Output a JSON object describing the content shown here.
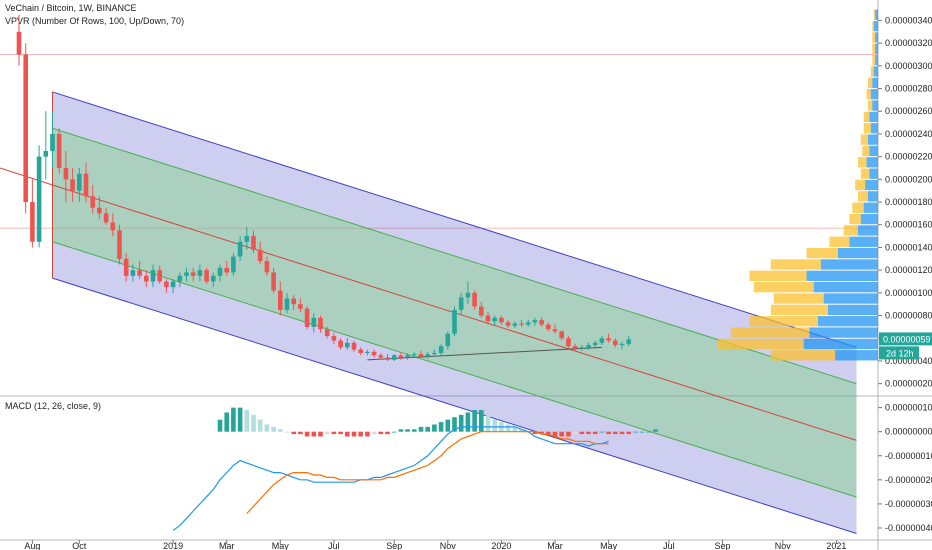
{
  "header": {
    "title": "VeChain / Bitcoin, 1W, BINANCE",
    "indicator": "VPVR (Number Of Rows, 100, Up/Down, 70)"
  },
  "macd_label": "MACD (12, 26, close, 9)",
  "last_price_label": "0.00000059",
  "countdown_label": "2d 12h",
  "colors": {
    "up": "#26a69a",
    "down": "#ef5350",
    "channel_outer": "#3f3fbf",
    "channel_inner": "#4caf50",
    "macd_line": "#2196f3",
    "signal_line": "#ff6d00",
    "vp_up": "#2196f3",
    "vp_down": "#fbc02d"
  },
  "chart_data": [
    {
      "type": "candlestick",
      "title": "VeChain / Bitcoin, 1W, BINANCE",
      "x_ticks": [
        "Aug",
        "Oct",
        "2019",
        "Mar",
        "May",
        "Jul",
        "Sep",
        "Nov",
        "2020",
        "Mar",
        "May",
        "Jul",
        "Sep",
        "Nov",
        "2021"
      ],
      "y_ticks": [
        "0.00000340",
        "0.00000320",
        "0.00000300",
        "0.00000280",
        "0.00000260",
        "0.00000240",
        "0.00000220",
        "0.00000200",
        "0.00000180",
        "0.00000160",
        "0.00000140",
        "0.00000120",
        "0.00000100",
        "0.00000080",
        "0.00000060",
        "0.00000040",
        "0.00000020"
      ],
      "y_range": [
        1e-07,
        3.58e-06
      ],
      "last_close": 5.9e-07,
      "candles": [
        [
          3.3e-06,
          3.45e-06,
          3e-06,
          3.1e-06
        ],
        [
          3.1e-06,
          3.2e-06,
          1.7e-06,
          1.8e-06
        ],
        [
          1.8e-06,
          2e-06,
          1.4e-06,
          1.45e-06
        ],
        [
          1.45e-06,
          2.3e-06,
          1.4e-06,
          2.2e-06
        ],
        [
          2.2e-06,
          2.6e-06,
          2e-06,
          2.25e-06
        ],
        [
          2.25e-06,
          2.6e-06,
          2.1e-06,
          2.4e-06
        ],
        [
          2.4e-06,
          2.45e-06,
          2.05e-06,
          2.1e-06
        ],
        [
          2.1e-06,
          2.25e-06,
          1.8e-06,
          2e-06
        ],
        [
          2e-06,
          2.1e-06,
          1.8e-06,
          1.9e-06
        ],
        [
          1.9e-06,
          2.1e-06,
          1.8e-06,
          2.05e-06
        ],
        [
          2.05e-06,
          2.15e-06,
          1.8e-06,
          1.85e-06
        ],
        [
          1.85e-06,
          1.95e-06,
          1.7e-06,
          1.75e-06
        ],
        [
          1.75e-06,
          1.85e-06,
          1.65e-06,
          1.7e-06
        ],
        [
          1.7e-06,
          1.75e-06,
          1.6e-06,
          1.62e-06
        ],
        [
          1.62e-06,
          1.7e-06,
          1.5e-06,
          1.55e-06
        ],
        [
          1.55e-06,
          1.6e-06,
          1.25e-06,
          1.3e-06
        ],
        [
          1.3e-06,
          1.35e-06,
          1.1e-06,
          1.15e-06
        ],
        [
          1.15e-06,
          1.25e-06,
          1.1e-06,
          1.2e-06
        ],
        [
          1.2e-06,
          1.28e-06,
          1.12e-06,
          1.15e-06
        ],
        [
          1.15e-06,
          1.2e-06,
          1.05e-06,
          1.1e-06
        ],
        [
          1.1e-06,
          1.25e-06,
          1.05e-06,
          1.2e-06
        ],
        [
          1.2e-06,
          1.24e-06,
          1.08e-06,
          1.1e-06
        ],
        [
          1.1e-06,
          1.12e-06,
          1e-06,
          1.05e-06
        ],
        [
          1.05e-06,
          1.12e-06,
          1e-06,
          1.1e-06
        ],
        [
          1.1e-06,
          1.18e-06,
          1.05e-06,
          1.15e-06
        ],
        [
          1.15e-06,
          1.22e-06,
          1.1e-06,
          1.18e-06
        ],
        [
          1.18e-06,
          1.22e-06,
          1.1e-06,
          1.15e-06
        ],
        [
          1.15e-06,
          1.25e-06,
          1.1e-06,
          1.2e-06
        ],
        [
          1.2e-06,
          1.22e-06,
          1.08e-06,
          1.1e-06
        ],
        [
          1.1e-06,
          1.18e-06,
          1.05e-06,
          1.15e-06
        ],
        [
          1.15e-06,
          1.25e-06,
          1.1e-06,
          1.22e-06
        ],
        [
          1.22e-06,
          1.28e-06,
          1.15e-06,
          1.18e-06
        ],
        [
          1.18e-06,
          1.35e-06,
          1.15e-06,
          1.32e-06
        ],
        [
          1.32e-06,
          1.5e-06,
          1.28e-06,
          1.45e-06
        ],
        [
          1.45e-06,
          1.58e-06,
          1.38e-06,
          1.5e-06
        ],
        [
          1.5e-06,
          1.55e-06,
          1.35e-06,
          1.38e-06
        ],
        [
          1.38e-06,
          1.45e-06,
          1.25e-06,
          1.28e-06
        ],
        [
          1.28e-06,
          1.32e-06,
          1.15e-06,
          1.18e-06
        ],
        [
          1.18e-06,
          1.22e-06,
          1e-06,
          1.02e-06
        ],
        [
          1.02e-06,
          1.1e-06,
          8e-07,
          8.5e-07
        ],
        [
          8.5e-07,
          1e-06,
          8.2e-07,
          9.5e-07
        ],
        [
          9.5e-07,
          9.8e-07,
          8.5e-07,
          9e-07
        ],
        [
          9e-07,
          9.5e-07,
          8.3e-07,
          8.6e-07
        ],
        [
          8.6e-07,
          8.8e-07,
          6.8e-07,
          7e-07
        ],
        [
          7e-07,
          8.2e-07,
          6.5e-07,
          7.8e-07
        ],
        [
          7.8e-07,
          8e-07,
          6.5e-07,
          6.8e-07
        ],
        [
          6.8e-07,
          7e-07,
          6e-07,
          6.2e-07
        ],
        [
          6.2e-07,
          6.5e-07,
          5.5e-07,
          5.8e-07
        ],
        [
          5.8e-07,
          6e-07,
          5e-07,
          5.2e-07
        ],
        [
          5.2e-07,
          6e-07,
          5e-07,
          5.6e-07
        ],
        [
          5.6e-07,
          5.8e-07,
          4.8e-07,
          5e-07
        ],
        [
          5e-07,
          5.2e-07,
          4.5e-07,
          4.7e-07
        ],
        [
          4.7e-07,
          5e-07,
          4.5e-07,
          4.8e-07
        ],
        [
          4.8e-07,
          5e-07,
          4.3e-07,
          4.5e-07
        ],
        [
          4.5e-07,
          4.7e-07,
          4.1e-07,
          4.3e-07
        ],
        [
          4.3e-07,
          4.6e-07,
          4e-07,
          4.1e-07
        ],
        [
          4.1e-07,
          4.6e-07,
          4e-07,
          4.5e-07
        ],
        [
          4.5e-07,
          4.8e-07,
          4.1e-07,
          4.3e-07
        ],
        [
          4.3e-07,
          4.7e-07,
          4.1e-07,
          4.5e-07
        ],
        [
          4.5e-07,
          4.8e-07,
          4.3e-07,
          4.6e-07
        ],
        [
          4.6e-07,
          4.9e-07,
          4.3e-07,
          4.4e-07
        ],
        [
          4.4e-07,
          4.8e-07,
          4.2e-07,
          4.6e-07
        ],
        [
          4.6e-07,
          5e-07,
          4.4e-07,
          4.7e-07
        ],
        [
          4.7e-07,
          5.5e-07,
          4.5e-07,
          5.3e-07
        ],
        [
          5.3e-07,
          6.6e-07,
          5e-07,
          6.4e-07
        ],
        [
          6.4e-07,
          8.8e-07,
          6.2e-07,
          8.5e-07
        ],
        [
          8.5e-07,
          1e-06,
          8e-07,
          9.6e-07
        ],
        [
          9.6e-07,
          1.1e-06,
          9e-07,
          1e-06
        ],
        [
          1e-06,
          1.02e-06,
          8.5e-07,
          8.8e-07
        ],
        [
          8.8e-07,
          9.2e-07,
          7.8e-07,
          8e-07
        ],
        [
          8e-07,
          8.3e-07,
          7.2e-07,
          7.5e-07
        ],
        [
          7.5e-07,
          8e-07,
          7.1e-07,
          7.8e-07
        ],
        [
          7.8e-07,
          8e-07,
          7.2e-07,
          7.4e-07
        ],
        [
          7.4e-07,
          7.6e-07,
          6.9e-07,
          7.1e-07
        ],
        [
          7.1e-07,
          7.5e-07,
          6.9e-07,
          7.3e-07
        ],
        [
          7.3e-07,
          7.6e-07,
          7e-07,
          7.2e-07
        ],
        [
          7.2e-07,
          7.6e-07,
          7e-07,
          7.4e-07
        ],
        [
          7.4e-07,
          7.8e-07,
          7.1e-07,
          7.6e-07
        ],
        [
          7.6e-07,
          7.8e-07,
          7e-07,
          7.2e-07
        ],
        [
          7.2e-07,
          7.4e-07,
          6.6e-07,
          6.8e-07
        ],
        [
          6.8e-07,
          7.2e-07,
          6.4e-07,
          6.6e-07
        ],
        [
          6.6e-07,
          6.7e-07,
          5.8e-07,
          6e-07
        ],
        [
          6e-07,
          6.2e-07,
          5.1e-07,
          5.3e-07
        ],
        [
          5.3e-07,
          5.5e-07,
          4.9e-07,
          5.1e-07
        ],
        [
          5.1e-07,
          5.4e-07,
          4.9e-07,
          5.2e-07
        ],
        [
          5.2e-07,
          5.6e-07,
          5e-07,
          5.4e-07
        ],
        [
          5.4e-07,
          5.8e-07,
          5.2e-07,
          5.6e-07
        ],
        [
          5.6e-07,
          6.2e-07,
          5.4e-07,
          6e-07
        ],
        [
          6e-07,
          6.4e-07,
          5.6e-07,
          5.8e-07
        ],
        [
          5.8e-07,
          6e-07,
          5.2e-07,
          5.4e-07
        ],
        [
          5.4e-07,
          5.7e-07,
          5e-07,
          5.5e-07
        ],
        [
          5.5e-07,
          6.2e-07,
          5.3e-07,
          5.9e-07
        ]
      ],
      "channel_outer_upper": [
        [
          2.72e-06,
          0
        ],
        [
          0.0,
          0
        ]
      ],
      "trendlines": {
        "channel": {
          "start_index": 5,
          "start_mid": 1.95e-06,
          "end_index": 125,
          "end_mid": -3e-07,
          "half_outer": 8.2e-07,
          "half_inner": 5e-07
        },
        "support": {
          "start_index": 52,
          "start_value": 4.1e-07,
          "end_index": 87,
          "end_value": 5.2e-07
        }
      },
      "horizontal_levels": [
        3.1e-06,
        1.57e-06
      ]
    },
    {
      "type": "macd",
      "title": "MACD (12, 26, close, 9)",
      "y_ticks": [
        "0.00000010",
        "0.00000000",
        "-0.00000010",
        "-0.00000020",
        "-0.00000030",
        "-0.00000040"
      ],
      "y_range": [
        -4.5e-07,
        1.4e-07
      ],
      "start_index": 23,
      "macd": [
        -4.1e-07,
        -3.9e-07,
        -3.6e-07,
        -3.3e-07,
        -3e-07,
        -2.7e-07,
        -2.4e-07,
        -2e-07,
        -1.7e-07,
        -1.4e-07,
        -1.2e-07,
        -1.3e-07,
        -1.4e-07,
        -1.5e-07,
        -1.6e-07,
        -1.7e-07,
        -1.7e-07,
        -1.8e-07,
        -1.9e-07,
        -2e-07,
        -2e-07,
        -2.1e-07,
        -2.1e-07,
        -2.1e-07,
        -2.1e-07,
        -2.1e-07,
        -2.1e-07,
        -2.1e-07,
        -2e-07,
        -2e-07,
        -1.9e-07,
        -1.9e-07,
        -1.8e-07,
        -1.7e-07,
        -1.6e-07,
        -1.5e-07,
        -1.4e-07,
        -1.2e-07,
        -1e-07,
        -7e-08,
        -4e-08,
        -1e-08,
        1e-08,
        2e-08,
        2e-08,
        2e-08,
        2e-08,
        2e-08,
        2e-08,
        2e-08,
        2e-08,
        2e-08,
        1e-08,
        0.0,
        -2e-08,
        -3e-08,
        -4e-08,
        -5e-08,
        -5e-08,
        -5e-08,
        -5e-08,
        -5e-08,
        -6e-08,
        -5e-08,
        -5e-08,
        -4e-08
      ],
      "signal": [
        null,
        null,
        null,
        null,
        null,
        null,
        null,
        null,
        null,
        null,
        null,
        -3.4e-07,
        -3.1e-07,
        -2.8e-07,
        -2.5e-07,
        -2.2e-07,
        -2e-07,
        -1.8e-07,
        -1.7e-07,
        -1.7e-07,
        -1.7e-07,
        -1.8e-07,
        -1.8e-07,
        -1.9e-07,
        -1.9e-07,
        -2e-07,
        -2e-07,
        -2e-07,
        -2e-07,
        -2e-07,
        -2e-07,
        -2e-07,
        -1.9e-07,
        -1.9e-07,
        -1.8e-07,
        -1.7e-07,
        -1.6e-07,
        -1.5e-07,
        -1.4e-07,
        -1.2e-07,
        -1e-07,
        -7e-08,
        -5e-08,
        -3e-08,
        -2e-08,
        -1e-08,
        0.0,
        0.0,
        0.0,
        0.0,
        0.0,
        0.0,
        0.0,
        0.0,
        0.0,
        -1e-08,
        -1e-08,
        -2e-08,
        -3e-08,
        -3e-08,
        -4e-08,
        -4e-08,
        -4e-08,
        -5e-08,
        -5e-08,
        -5e-08
      ],
      "histogram": [
        5e-08,
        8e-08,
        1e-07,
        1e-07,
        9e-08,
        7e-08,
        5e-08,
        3e-08,
        2e-08,
        1e-08,
        0.0,
        -1e-08,
        -1e-08,
        -2e-08,
        -2e-08,
        -2e-08,
        -1e-08,
        -1e-08,
        -1e-08,
        -2e-08,
        -2e-08,
        -2e-08,
        -2e-08,
        -1e-08,
        -1e-08,
        -1e-08,
        0.0,
        1e-08,
        1e-08,
        1e-08,
        2e-08,
        2e-08,
        3e-08,
        4e-08,
        5e-08,
        6e-08,
        7e-08,
        8e-08,
        9e-08,
        9e-08,
        7e-08,
        5e-08,
        4e-08,
        3e-08,
        2e-08,
        1e-08,
        0.0,
        -1e-08,
        -1e-08,
        -1e-08,
        -2e-08,
        -2e-08,
        -2e-08,
        -1e-08,
        -1e-08,
        -1e-08,
        -1e-08,
        0.0,
        -1e-08,
        -1e-08,
        -1e-08,
        -1e-08,
        0.0,
        0.0,
        0.0,
        1e-08
      ],
      "histogram_start_index": 30
    }
  ],
  "volume_profile": {
    "price_levels": [
      3.45e-06,
      3.35e-06,
      3.25e-06,
      3.15e-06,
      3.05e-06,
      2.95e-06,
      2.85e-06,
      2.75e-06,
      2.65e-06,
      2.55e-06,
      2.45e-06,
      2.35e-06,
      2.25e-06,
      2.15e-06,
      2.05e-06,
      1.95e-06,
      1.85e-06,
      1.75e-06,
      1.65e-06,
      1.55e-06,
      1.45e-06,
      1.35e-06,
      1.25e-06,
      1.15e-06,
      1.05e-06,
      9.5e-07,
      8.5e-07,
      7.5e-07,
      6.5e-07,
      5.5e-07,
      4.5e-07
    ],
    "up_volume": [
      2,
      3,
      2,
      2,
      2,
      3,
      4,
      5,
      4,
      6,
      5,
      7,
      6,
      8,
      6,
      9,
      7,
      10,
      12,
      14,
      20,
      28,
      40,
      50,
      45,
      38,
      35,
      42,
      48,
      52,
      30
    ],
    "down_volume": [
      1,
      1,
      2,
      2,
      2,
      2,
      3,
      3,
      3,
      4,
      5,
      5,
      5,
      6,
      6,
      7,
      7,
      8,
      8,
      10,
      14,
      22,
      35,
      40,
      42,
      35,
      40,
      48,
      55,
      60,
      45
    ]
  }
}
